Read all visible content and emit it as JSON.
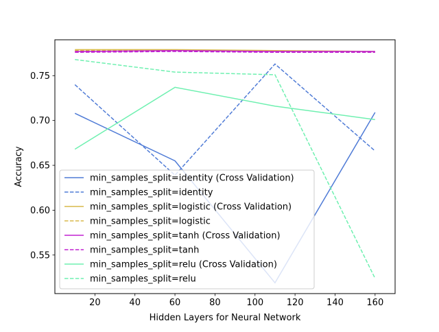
{
  "chart_data": {
    "type": "line",
    "title": "",
    "xlabel": "Hidden Layers for Neural Network",
    "ylabel": "Accuracy",
    "x": [
      10,
      60,
      110,
      160
    ],
    "xlim": [
      0,
      170
    ],
    "ylim": [
      0.507,
      0.79
    ],
    "xticks": [
      20,
      40,
      60,
      80,
      100,
      120,
      140,
      160
    ],
    "yticks": [
      0.55,
      0.6,
      0.65,
      0.7,
      0.75
    ],
    "ytick_labels": [
      "0.55",
      "0.60",
      "0.65",
      "0.70",
      "0.75"
    ],
    "grid": false,
    "legend_position": "lower-left",
    "series": [
      {
        "name": "min_samples_split=identity (Cross Validation)",
        "values": [
          0.708,
          0.655,
          0.519,
          0.709
        ],
        "color": "#4f7bd6",
        "dash": "solid"
      },
      {
        "name": "min_samples_split=identity",
        "values": [
          0.74,
          0.639,
          0.763,
          0.666
        ],
        "color": "#4f7bd6",
        "dash": "dashed"
      },
      {
        "name": "min_samples_split=logistic (Cross Validation)",
        "values": [
          0.779,
          0.779,
          0.778,
          0.777
        ],
        "color": "#d9b84a",
        "dash": "solid"
      },
      {
        "name": "min_samples_split=logistic",
        "values": [
          0.778,
          0.778,
          0.777,
          0.776
        ],
        "color": "#d9b84a",
        "dash": "dashed"
      },
      {
        "name": "min_samples_split=tanh (Cross Validation)",
        "values": [
          0.777,
          0.778,
          0.777,
          0.777
        ],
        "color": "#c020d0",
        "dash": "solid"
      },
      {
        "name": "min_samples_split=tanh",
        "values": [
          0.776,
          0.777,
          0.776,
          0.776
        ],
        "color": "#c020d0",
        "dash": "dashed"
      },
      {
        "name": "min_samples_split=relu (Cross Validation)",
        "values": [
          0.668,
          0.737,
          0.716,
          0.701
        ],
        "color": "#6ef0b0",
        "dash": "solid"
      },
      {
        "name": "min_samples_split=relu",
        "values": [
          0.768,
          0.754,
          0.751,
          0.524
        ],
        "color": "#6ef0b0",
        "dash": "dashed"
      }
    ]
  }
}
